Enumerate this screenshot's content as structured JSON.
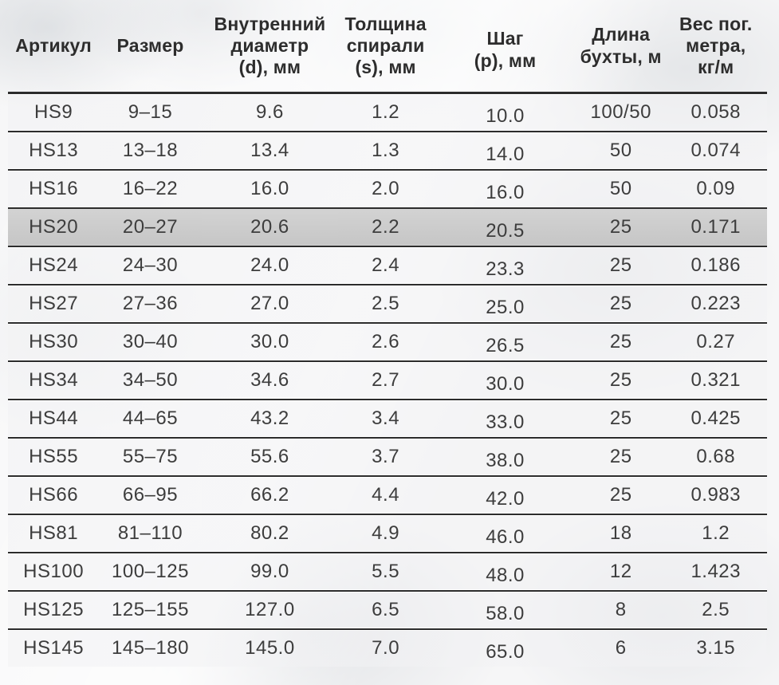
{
  "table": {
    "headers": [
      "Артикул",
      "Размер",
      "Внутренний\nдиаметр\n(d), мм",
      "Толщина\nспирали\n(s), мм",
      "Шаг\n(p), мм",
      "Длина\nбухты, м",
      "Вес пог.\nметра,\nкг/м"
    ],
    "column_keys": [
      "article",
      "size",
      "inner_diameter_d_mm",
      "spiral_thickness_s_mm",
      "pitch_p_mm",
      "coil_length_m",
      "weight_per_meter_kg_m"
    ],
    "rows": [
      {
        "article": "HS9",
        "size": "9–15",
        "inner_diameter_d_mm": "9.6",
        "spiral_thickness_s_mm": "1.2",
        "pitch_p_mm": "10.0",
        "coil_length_m": "100/50",
        "weight_per_meter_kg_m": "0.058"
      },
      {
        "article": "HS13",
        "size": "13–18",
        "inner_diameter_d_mm": "13.4",
        "spiral_thickness_s_mm": "1.3",
        "pitch_p_mm": "14.0",
        "coil_length_m": "50",
        "weight_per_meter_kg_m": "0.074"
      },
      {
        "article": "HS16",
        "size": "16–22",
        "inner_diameter_d_mm": "16.0",
        "spiral_thickness_s_mm": "2.0",
        "pitch_p_mm": "16.0",
        "coil_length_m": "50",
        "weight_per_meter_kg_m": "0.09"
      },
      {
        "article": "HS20",
        "size": "20–27",
        "inner_diameter_d_mm": "20.6",
        "spiral_thickness_s_mm": "2.2",
        "pitch_p_mm": "20.5",
        "coil_length_m": "25",
        "weight_per_meter_kg_m": "0.171"
      },
      {
        "article": "HS24",
        "size": "24–30",
        "inner_diameter_d_mm": "24.0",
        "spiral_thickness_s_mm": "2.4",
        "pitch_p_mm": "23.3",
        "coil_length_m": "25",
        "weight_per_meter_kg_m": "0.186"
      },
      {
        "article": "HS27",
        "size": "27–36",
        "inner_diameter_d_mm": "27.0",
        "spiral_thickness_s_mm": "2.5",
        "pitch_p_mm": "25.0",
        "coil_length_m": "25",
        "weight_per_meter_kg_m": "0.223"
      },
      {
        "article": "HS30",
        "size": "30–40",
        "inner_diameter_d_mm": "30.0",
        "spiral_thickness_s_mm": "2.6",
        "pitch_p_mm": "26.5",
        "coil_length_m": "25",
        "weight_per_meter_kg_m": "0.27"
      },
      {
        "article": "HS34",
        "size": "34–50",
        "inner_diameter_d_mm": "34.6",
        "spiral_thickness_s_mm": "2.7",
        "pitch_p_mm": "30.0",
        "coil_length_m": "25",
        "weight_per_meter_kg_m": "0.321"
      },
      {
        "article": "HS44",
        "size": "44–65",
        "inner_diameter_d_mm": "43.2",
        "spiral_thickness_s_mm": "3.4",
        "pitch_p_mm": "33.0",
        "coil_length_m": "25",
        "weight_per_meter_kg_m": "0.425"
      },
      {
        "article": "HS55",
        "size": "55–75",
        "inner_diameter_d_mm": "55.6",
        "spiral_thickness_s_mm": "3.7",
        "pitch_p_mm": "38.0",
        "coil_length_m": "25",
        "weight_per_meter_kg_m": "0.68"
      },
      {
        "article": "HS66",
        "size": "66–95",
        "inner_diameter_d_mm": "66.2",
        "spiral_thickness_s_mm": "4.4",
        "pitch_p_mm": "42.0",
        "coil_length_m": "25",
        "weight_per_meter_kg_m": "0.983"
      },
      {
        "article": "HS81",
        "size": "81–110",
        "inner_diameter_d_mm": "80.2",
        "spiral_thickness_s_mm": "4.9",
        "pitch_p_mm": "46.0",
        "coil_length_m": "18",
        "weight_per_meter_kg_m": "1.2"
      },
      {
        "article": "HS100",
        "size": "100–125",
        "inner_diameter_d_mm": "99.0",
        "spiral_thickness_s_mm": "5.5",
        "pitch_p_mm": "48.0",
        "coil_length_m": "12",
        "weight_per_meter_kg_m": "1.423"
      },
      {
        "article": "HS125",
        "size": "125–155",
        "inner_diameter_d_mm": "127.0",
        "spiral_thickness_s_mm": "6.5",
        "pitch_p_mm": "58.0",
        "coil_length_m": "8",
        "weight_per_meter_kg_m": "2.5"
      },
      {
        "article": "HS145",
        "size": "145–180",
        "inner_diameter_d_mm": "145.0",
        "spiral_thickness_s_mm": "7.0",
        "pitch_p_mm": "65.0",
        "coil_length_m": "6",
        "weight_per_meter_kg_m": "3.15"
      }
    ],
    "highlighted_article": "HS20"
  },
  "colors": {
    "highlight_row": "#c6c6c6",
    "rule_line": "#2c2c2c",
    "cell_text": "#3d3d3d",
    "header_text": "#2d2d2d"
  }
}
